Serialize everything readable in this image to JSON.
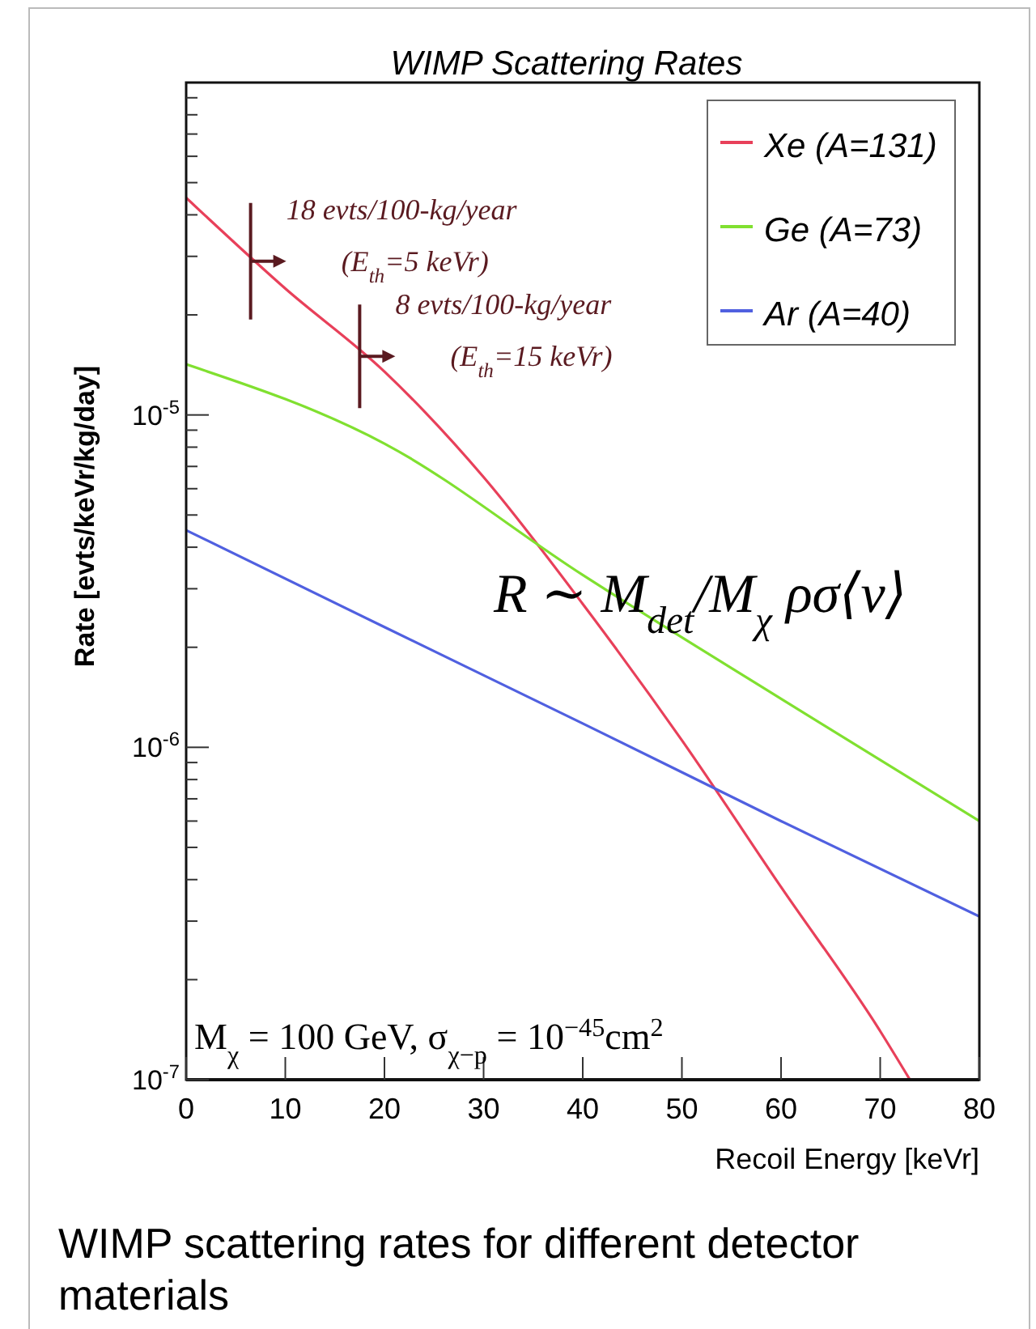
{
  "chart_data": {
    "type": "line",
    "title": "WIMP Scattering Rates",
    "xlabel": "Recoil Energy [keVr]",
    "ylabel": "Rate [evts/keVr/kg/day]",
    "log": "y",
    "grid": false,
    "legend": "top right",
    "line_style": "solid",
    "marker": "none",
    "xlim": [
      0,
      80
    ],
    "ylim": [
      1e-07,
      0.0001
    ],
    "xticks": [
      0,
      10,
      20,
      30,
      40,
      50,
      60,
      70,
      80
    ],
    "yticks": [
      {
        "value": 1e-07,
        "label": "10$^{-7}$"
      },
      {
        "value": 2e-07,
        "label": null
      },
      {
        "value": 3e-07,
        "label": null
      },
      {
        "value": 4e-07,
        "label": null
      },
      {
        "value": 5e-07,
        "label": null
      },
      {
        "value": 6e-07,
        "label": null
      },
      {
        "value": 7e-07,
        "label": null
      },
      {
        "value": 8e-07,
        "label": null
      },
      {
        "value": 9e-07,
        "label": null
      },
      {
        "value": 1e-06,
        "label": "10$^{-6}$"
      },
      {
        "value": 2e-06,
        "label": null
      },
      {
        "value": 3e-06,
        "label": null
      },
      {
        "value": 4e-06,
        "label": null
      },
      {
        "value": 5e-06,
        "label": null
      },
      {
        "value": 6e-06,
        "label": null
      },
      {
        "value": 7e-06,
        "label": null
      },
      {
        "value": 8e-06,
        "label": null
      },
      {
        "value": 9e-06,
        "label": null
      },
      {
        "value": 1e-05,
        "label": "10$^{-5}$"
      },
      {
        "value": 2e-05,
        "label": null
      },
      {
        "value": 3e-05,
        "label": null
      },
      {
        "value": 4e-05,
        "label": null
      },
      {
        "value": 5e-05,
        "label": null
      },
      {
        "value": 6e-05,
        "label": null
      },
      {
        "value": 7e-05,
        "label": null
      },
      {
        "value": 8e-05,
        "label": null
      },
      {
        "value": 9e-05,
        "label": null
      }
    ],
    "series": [
      {
        "name": "Xe (A=131)",
        "color": "#e8405a",
        "x": [
          0,
          10,
          20,
          30,
          40,
          50,
          60,
          70,
          73
        ],
        "values": [
          4.5e-05,
          2.4e-05,
          1.35e-05,
          6.5e-06,
          2.7e-06,
          1.05e-06,
          3.8e-07,
          1.4e-07,
          1e-07
        ]
      },
      {
        "name": "Ge (A=73)",
        "color": "#80e030",
        "x": [
          0,
          20,
          40,
          60,
          80
        ],
        "values": [
          1.42e-05,
          8.2e-06,
          3.3e-06,
          1.4e-06,
          6e-07
        ]
      },
      {
        "name": "Ar (A=40)",
        "color": "#5060e0",
        "x": [
          0,
          20,
          40,
          60,
          80
        ],
        "values": [
          4.5e-06,
          2.3e-06,
          1.18e-06,
          6e-07,
          3.1e-07
        ]
      }
    ],
    "annotations": [
      {
        "text": "18 evts/100-kg/year\n(E$_{th}$=5 keVr)",
        "x": 6.5,
        "y": 2.9e-05
      },
      {
        "text": "8 evts/100-kg/year\n(E$_{th}$=15 keVr)",
        "x": 17.5,
        "y": 1.5e-05
      },
      "R ∼ M$_{det}$/M$_{χ}$ ρσ⟨v⟩",
      "M$_{χ}$ = 100 GeV, σ$_{χ−p}$ = 10$^{−45}$cm$^{2}$",
      "WIMP scattering rates for different detector materials"
    ]
  }
}
